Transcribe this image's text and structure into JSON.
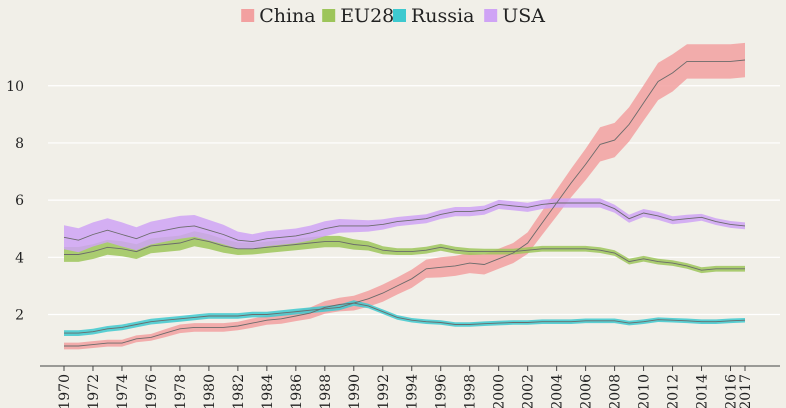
{
  "chart_data": {
    "type": "line",
    "title": "",
    "xlabel": "",
    "ylabel": "",
    "x": [
      1970,
      1971,
      1972,
      1973,
      1974,
      1975,
      1976,
      1977,
      1978,
      1979,
      1980,
      1981,
      1982,
      1983,
      1984,
      1985,
      1986,
      1987,
      1988,
      1989,
      1990,
      1991,
      1992,
      1993,
      1994,
      1995,
      1996,
      1997,
      1998,
      1999,
      2000,
      2001,
      2002,
      2003,
      2004,
      2005,
      2006,
      2007,
      2008,
      2009,
      2010,
      2011,
      2012,
      2013,
      2014,
      2015,
      2016,
      2017
    ],
    "xlim": [
      1970,
      2017
    ],
    "ylim": [
      0.2,
      11.6
    ],
    "x_ticks": [
      "1970",
      "1972",
      "1974",
      "1976",
      "1978",
      "1980",
      "1982",
      "1984",
      "1986",
      "1988",
      "1990",
      "1992",
      "1994",
      "1996",
      "1998",
      "2000",
      "2002",
      "2004",
      "2006",
      "2008",
      "2010",
      "2012",
      "2014",
      "2016",
      "2017"
    ],
    "y_ticks": [
      "2",
      "4",
      "6",
      "8",
      "10"
    ],
    "grid": "horizontal",
    "legend": "top-center",
    "series": [
      {
        "name": "China",
        "color": "#f2a0a0",
        "values": [
          0.9,
          0.9,
          0.95,
          1.0,
          1.0,
          1.15,
          1.2,
          1.35,
          1.5,
          1.55,
          1.55,
          1.55,
          1.6,
          1.7,
          1.8,
          1.85,
          1.95,
          2.05,
          2.25,
          2.35,
          2.4,
          2.55,
          2.75,
          3.0,
          3.25,
          3.6,
          3.65,
          3.7,
          3.8,
          3.75,
          3.95,
          4.15,
          4.5,
          5.2,
          5.9,
          6.6,
          7.25,
          7.95,
          8.1,
          8.65,
          9.4,
          10.15,
          10.45,
          10.85,
          10.85,
          10.85,
          10.85,
          10.9
        ],
        "band_width": [
          0.12,
          0.12,
          0.12,
          0.12,
          0.12,
          0.12,
          0.12,
          0.14,
          0.15,
          0.15,
          0.15,
          0.15,
          0.15,
          0.16,
          0.16,
          0.17,
          0.18,
          0.2,
          0.22,
          0.24,
          0.26,
          0.28,
          0.3,
          0.3,
          0.32,
          0.32,
          0.35,
          0.35,
          0.35,
          0.35,
          0.35,
          0.35,
          0.38,
          0.42,
          0.46,
          0.5,
          0.55,
          0.6,
          0.6,
          0.6,
          0.62,
          0.65,
          0.65,
          0.6,
          0.6,
          0.6,
          0.6,
          0.6
        ]
      },
      {
        "name": "EU28",
        "color": "#9dc55a",
        "values": [
          4.1,
          4.1,
          4.2,
          4.35,
          4.3,
          4.2,
          4.4,
          4.45,
          4.5,
          4.65,
          4.55,
          4.4,
          4.3,
          4.3,
          4.35,
          4.4,
          4.45,
          4.5,
          4.55,
          4.55,
          4.45,
          4.4,
          4.25,
          4.2,
          4.2,
          4.25,
          4.35,
          4.25,
          4.2,
          4.2,
          4.2,
          4.2,
          4.25,
          4.3,
          4.3,
          4.3,
          4.3,
          4.25,
          4.15,
          3.85,
          3.95,
          3.85,
          3.8,
          3.7,
          3.55,
          3.6,
          3.6,
          3.6
        ],
        "band_width": [
          0.26,
          0.26,
          0.26,
          0.26,
          0.26,
          0.26,
          0.26,
          0.26,
          0.26,
          0.26,
          0.26,
          0.24,
          0.22,
          0.2,
          0.2,
          0.2,
          0.2,
          0.2,
          0.2,
          0.2,
          0.18,
          0.16,
          0.14,
          0.12,
          0.12,
          0.12,
          0.12,
          0.12,
          0.12,
          0.1,
          0.1,
          0.1,
          0.1,
          0.1,
          0.1,
          0.1,
          0.1,
          0.1,
          0.1,
          0.1,
          0.1,
          0.1,
          0.1,
          0.1,
          0.1,
          0.1,
          0.1,
          0.1
        ]
      },
      {
        "name": "Russia",
        "color": "#3ec9cf",
        "values": [
          1.35,
          1.35,
          1.4,
          1.5,
          1.55,
          1.65,
          1.75,
          1.8,
          1.85,
          1.9,
          1.95,
          1.95,
          1.95,
          2.0,
          2.0,
          2.05,
          2.1,
          2.15,
          2.2,
          2.25,
          2.4,
          2.3,
          2.1,
          1.9,
          1.8,
          1.75,
          1.72,
          1.65,
          1.65,
          1.68,
          1.7,
          1.72,
          1.72,
          1.75,
          1.75,
          1.75,
          1.78,
          1.78,
          1.78,
          1.7,
          1.75,
          1.82,
          1.8,
          1.78,
          1.75,
          1.75,
          1.78,
          1.8
        ],
        "band_width": [
          0.1,
          0.1,
          0.1,
          0.1,
          0.1,
          0.1,
          0.1,
          0.1,
          0.1,
          0.1,
          0.1,
          0.1,
          0.1,
          0.1,
          0.1,
          0.1,
          0.1,
          0.1,
          0.1,
          0.1,
          0.1,
          0.08,
          0.08,
          0.08,
          0.08,
          0.08,
          0.08,
          0.08,
          0.08,
          0.08,
          0.08,
          0.08,
          0.08,
          0.08,
          0.08,
          0.08,
          0.08,
          0.08,
          0.08,
          0.08,
          0.08,
          0.08,
          0.08,
          0.08,
          0.08,
          0.08,
          0.08,
          0.08
        ]
      },
      {
        "name": "USA",
        "color": "#cfa3f5",
        "values": [
          4.7,
          4.6,
          4.8,
          4.95,
          4.8,
          4.65,
          4.85,
          4.95,
          5.05,
          5.1,
          4.95,
          4.8,
          4.6,
          4.55,
          4.65,
          4.7,
          4.75,
          4.85,
          5.0,
          5.1,
          5.1,
          5.1,
          5.15,
          5.25,
          5.3,
          5.35,
          5.5,
          5.6,
          5.6,
          5.65,
          5.85,
          5.8,
          5.75,
          5.85,
          5.9,
          5.9,
          5.9,
          5.9,
          5.7,
          5.35,
          5.55,
          5.45,
          5.3,
          5.35,
          5.4,
          5.25,
          5.15,
          5.1
        ],
        "band_width": [
          0.42,
          0.42,
          0.42,
          0.42,
          0.42,
          0.4,
          0.4,
          0.4,
          0.4,
          0.38,
          0.36,
          0.34,
          0.3,
          0.26,
          0.26,
          0.26,
          0.26,
          0.26,
          0.26,
          0.24,
          0.22,
          0.2,
          0.18,
          0.16,
          0.16,
          0.16,
          0.16,
          0.16,
          0.16,
          0.16,
          0.16,
          0.16,
          0.16,
          0.16,
          0.16,
          0.16,
          0.16,
          0.16,
          0.14,
          0.14,
          0.14,
          0.14,
          0.14,
          0.14,
          0.12,
          0.12,
          0.12,
          0.12
        ]
      }
    ]
  }
}
